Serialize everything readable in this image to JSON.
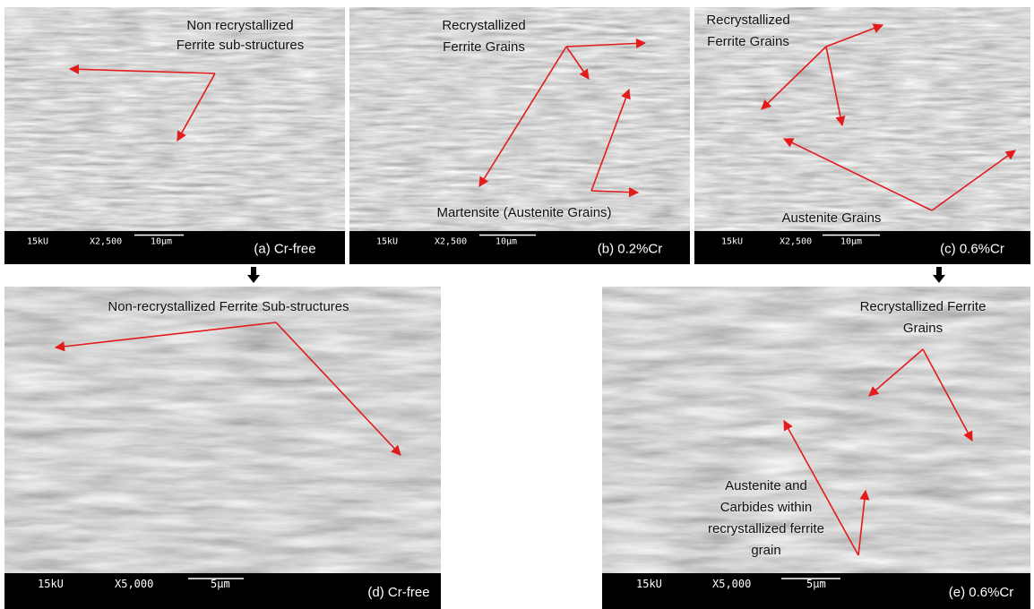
{
  "panels": [
    {
      "label": "(a) Cr-free",
      "voltage": "15kU",
      "magnification": "X2,500",
      "scale": "10μm",
      "annotations": [
        [
          "Non recrystallized",
          "Ferrite sub-structures"
        ]
      ]
    },
    {
      "label": "(b) 0.2%Cr",
      "voltage": "15kU",
      "magnification": "X2,500",
      "scale": "10μm",
      "annotations": [
        [
          "Recrystallized",
          "Ferrite Grains"
        ],
        [
          "Martensite (Austenite Grains)"
        ]
      ]
    },
    {
      "label": "(c) 0.6%Cr",
      "voltage": "15kU",
      "magnification": "X2,500",
      "scale": "10μm",
      "annotations": [
        [
          "Recrystallized",
          "Ferrite Grains"
        ],
        [
          "Austenite Grains"
        ]
      ]
    },
    {
      "label": "(d) Cr-free",
      "voltage": "15kU",
      "magnification": "X5,000",
      "scale": "5μm",
      "annotations": [
        [
          "Non-recrystallized Ferrite Sub-structures"
        ]
      ]
    },
    {
      "label": "(e) 0.6%Cr",
      "voltage": "15kU",
      "magnification": "X5,000",
      "scale": "5μm",
      "annotations": [
        [
          "Recrystallized Ferrite",
          "Grains"
        ],
        [
          "Austenite and",
          "Carbides within",
          "recrystallized ferrite",
          "grain"
        ]
      ]
    }
  ]
}
